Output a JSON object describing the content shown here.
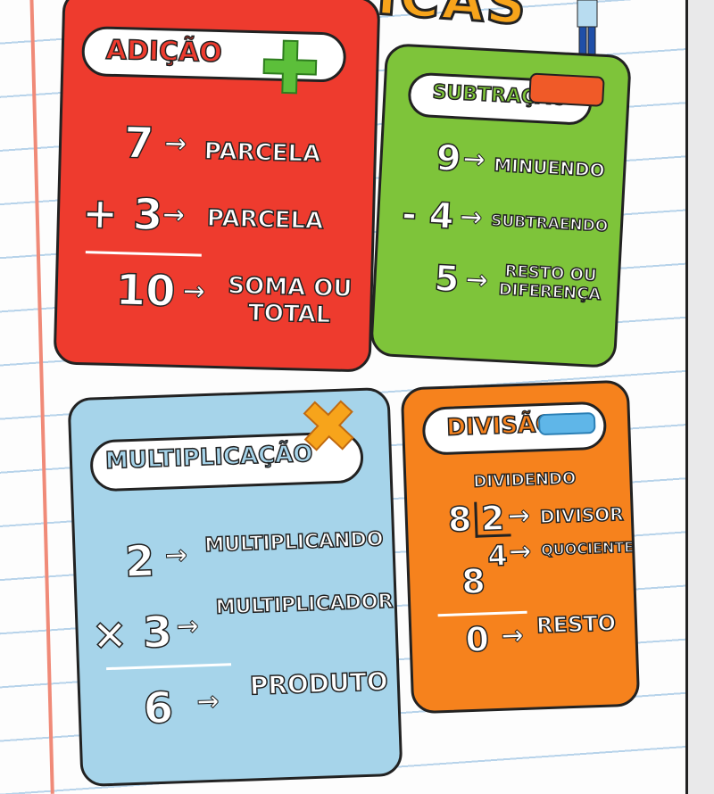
{
  "poster_title": "ATICAS",
  "cards": {
    "addition": {
      "title": "ADIÇÃO",
      "icon": "plus-icon",
      "color": "#ee3b2e",
      "rows": [
        {
          "num": "7",
          "label": "PARCELA"
        },
        {
          "num": "+ 3",
          "label": "PARCELA"
        },
        {
          "num": "10",
          "label": "SOMA OU TOTAL"
        }
      ]
    },
    "subtraction": {
      "title": "SUBTRAÇÃO",
      "icon": "minus-icon",
      "color": "#7ec43a",
      "rows": [
        {
          "num": "9",
          "label": "MINUENDO"
        },
        {
          "num": "- 4",
          "label": "SUBTRAENDO"
        },
        {
          "num": "5",
          "label": "RESTO OU DIFERENÇA"
        }
      ]
    },
    "multiplication": {
      "title": "MULTIPLICAÇÃO",
      "icon": "times-icon",
      "color": "#a6d4ea",
      "rows": [
        {
          "num": "2",
          "label": "MULTIPLICANDO"
        },
        {
          "num": "× 3",
          "label": "MULTIPLICADOR"
        },
        {
          "num": "6",
          "label": "PRODUTO"
        }
      ]
    },
    "division": {
      "title": "DIVISÃO",
      "icon": "divide-icon",
      "color": "#f6821d",
      "dividend_label": "DIVIDENDO",
      "dividend": "8",
      "divisor": "2",
      "divisor_label": "DIVISOR",
      "quotient": "4",
      "quotient_label": "QUOCIENTE",
      "subtract": "8",
      "remainder": "0",
      "remainder_label": "RESTO"
    }
  }
}
